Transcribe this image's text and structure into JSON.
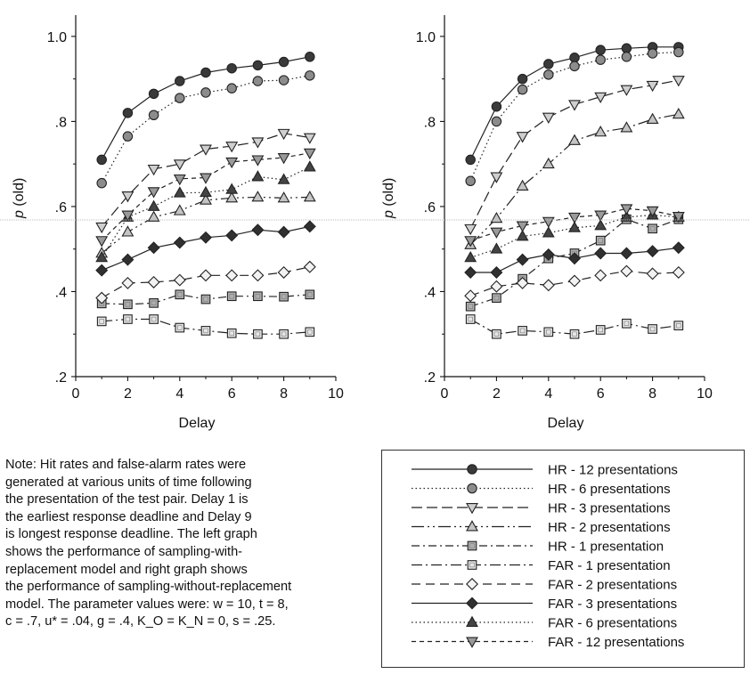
{
  "chart_data": [
    {
      "type": "line",
      "name": "left-graph",
      "xlabel": "Delay",
      "ylabel": "p (old)",
      "xlim": [
        0,
        10
      ],
      "ylim": [
        0.2,
        1.05
      ],
      "x_ticks": [
        "0",
        "2",
        "4",
        "6",
        "8",
        "10"
      ],
      "y_ticks": [
        ".2",
        ".4",
        ".6",
        ".8",
        "1.0"
      ],
      "x": [
        1,
        2,
        3,
        4,
        5,
        6,
        7,
        8,
        9
      ],
      "series": [
        {
          "name": "HR - 12 presentations",
          "values": [
            0.71,
            0.82,
            0.865,
            0.895,
            0.915,
            0.925,
            0.932,
            0.94,
            0.952
          ]
        },
        {
          "name": "HR - 6 presentations",
          "values": [
            0.655,
            0.765,
            0.815,
            0.855,
            0.868,
            0.878,
            0.895,
            0.897,
            0.908
          ]
        },
        {
          "name": "HR - 3 presentations",
          "values": [
            0.552,
            0.625,
            0.688,
            0.7,
            0.735,
            0.742,
            0.752,
            0.772,
            0.762
          ]
        },
        {
          "name": "HR - 2 presentations",
          "values": [
            0.49,
            0.54,
            0.575,
            0.59,
            0.615,
            0.62,
            0.622,
            0.62,
            0.622
          ]
        },
        {
          "name": "HR - 1 presentation",
          "values": [
            0.372,
            0.37,
            0.373,
            0.393,
            0.382,
            0.389,
            0.389,
            0.388,
            0.393
          ]
        },
        {
          "name": "FAR - 1 presentation",
          "values": [
            0.33,
            0.335,
            0.335,
            0.315,
            0.308,
            0.302,
            0.3,
            0.3,
            0.305
          ]
        },
        {
          "name": "FAR - 2 presentations",
          "values": [
            0.385,
            0.42,
            0.422,
            0.427,
            0.438,
            0.438,
            0.438,
            0.445,
            0.458
          ]
        },
        {
          "name": "FAR - 3 presentations",
          "values": [
            0.45,
            0.475,
            0.503,
            0.515,
            0.527,
            0.532,
            0.545,
            0.54,
            0.553
          ]
        },
        {
          "name": "FAR - 6 presentations",
          "values": [
            0.48,
            0.575,
            0.6,
            0.632,
            0.633,
            0.64,
            0.67,
            0.663,
            0.693
          ]
        },
        {
          "name": "FAR - 12 presentations",
          "values": [
            0.52,
            0.58,
            0.635,
            0.665,
            0.668,
            0.705,
            0.71,
            0.715,
            0.726
          ]
        }
      ]
    },
    {
      "type": "line",
      "name": "right-graph",
      "xlabel": "Delay",
      "ylabel": "p (old)",
      "xlim": [
        0,
        10
      ],
      "ylim": [
        0.2,
        1.05
      ],
      "x_ticks": [
        "0",
        "2",
        "4",
        "6",
        "8",
        "10"
      ],
      "y_ticks": [
        ".2",
        ".4",
        ".6",
        ".8",
        "1.0"
      ],
      "x": [
        1,
        2,
        3,
        4,
        5,
        6,
        7,
        8,
        9
      ],
      "series": [
        {
          "name": "HR - 12 presentations",
          "values": [
            0.71,
            0.835,
            0.9,
            0.935,
            0.95,
            0.968,
            0.972,
            0.975,
            0.975
          ]
        },
        {
          "name": "HR - 6 presentations",
          "values": [
            0.66,
            0.8,
            0.875,
            0.91,
            0.93,
            0.945,
            0.952,
            0.96,
            0.963
          ]
        },
        {
          "name": "HR - 3 presentations",
          "values": [
            0.548,
            0.67,
            0.765,
            0.81,
            0.84,
            0.858,
            0.875,
            0.885,
            0.897
          ]
        },
        {
          "name": "HR - 2 presentations",
          "values": [
            0.51,
            0.572,
            0.648,
            0.7,
            0.755,
            0.775,
            0.785,
            0.805,
            0.817
          ]
        },
        {
          "name": "HR - 1 presentation",
          "values": [
            0.365,
            0.385,
            0.43,
            0.478,
            0.49,
            0.52,
            0.57,
            0.548,
            0.57
          ]
        },
        {
          "name": "FAR - 1 presentation",
          "values": [
            0.335,
            0.3,
            0.308,
            0.305,
            0.3,
            0.31,
            0.325,
            0.312,
            0.32
          ]
        },
        {
          "name": "FAR - 2 presentations",
          "values": [
            0.39,
            0.412,
            0.42,
            0.415,
            0.425,
            0.438,
            0.448,
            0.442,
            0.445
          ]
        },
        {
          "name": "FAR - 3 presentations",
          "values": [
            0.445,
            0.445,
            0.475,
            0.487,
            0.478,
            0.49,
            0.49,
            0.495,
            0.503
          ]
        },
        {
          "name": "FAR - 6 presentations",
          "values": [
            0.48,
            0.5,
            0.53,
            0.538,
            0.55,
            0.555,
            0.575,
            0.58,
            0.575
          ]
        },
        {
          "name": "FAR - 12 presentations",
          "values": [
            0.52,
            0.54,
            0.555,
            0.565,
            0.575,
            0.58,
            0.595,
            0.59,
            0.577
          ]
        }
      ]
    }
  ],
  "styles": [
    {
      "marker": "circle",
      "fill": "#3a3a3a",
      "dash": ""
    },
    {
      "marker": "circle",
      "fill": "#8c8c8c",
      "dash": "1.5,3"
    },
    {
      "marker": "tri-down",
      "fill": "#cfcfcf",
      "dash": "12,5"
    },
    {
      "marker": "tri-up",
      "fill": "#c4c4c4",
      "dash": "14,4,2,4,2,4"
    },
    {
      "marker": "square",
      "fill": "#b0b0b0",
      "dash": "9,4,2,4"
    },
    {
      "marker": "square",
      "fill": "#e6e6e6",
      "dash": "12,4,2,4"
    },
    {
      "marker": "diamond",
      "fill": "#f2f2f2",
      "dash": "10,6"
    },
    {
      "marker": "diamond",
      "fill": "#303030",
      "dash": ""
    },
    {
      "marker": "tri-up",
      "fill": "#444444",
      "dash": "1.5,3"
    },
    {
      "marker": "tri-down",
      "fill": "#9a9a9a",
      "dash": "5,4"
    }
  ],
  "legend": {
    "entries": [
      "HR - 12 presentations",
      "HR - 6 presentations",
      "HR - 3 presentations",
      "HR - 2 presentations",
      "HR - 1 presentation",
      "FAR - 1 presentation",
      "FAR - 2 presentations",
      "FAR - 3 presentations",
      "FAR - 6 presentations",
      "FAR - 12 presentations"
    ]
  },
  "note": {
    "line1": "Note: Hit rates and false-alarm rates were",
    "line2": "generated at various units of time following",
    "line3": "the presentation of the test pair.  Delay 1 is",
    "line4": "the earliest response deadline and Delay 9",
    "line5": "is longest response deadline.  The left graph",
    "line6": "shows the performance of sampling-with-",
    "line7": "replacement model and right graph shows",
    "line8": "the performance of sampling-without-replacement",
    "line9": "model.  The parameter values were: w = 10, t = 8,",
    "line10": "c = .7, u* = .04, g = .4, K_O = K_N = 0, s = .25."
  }
}
